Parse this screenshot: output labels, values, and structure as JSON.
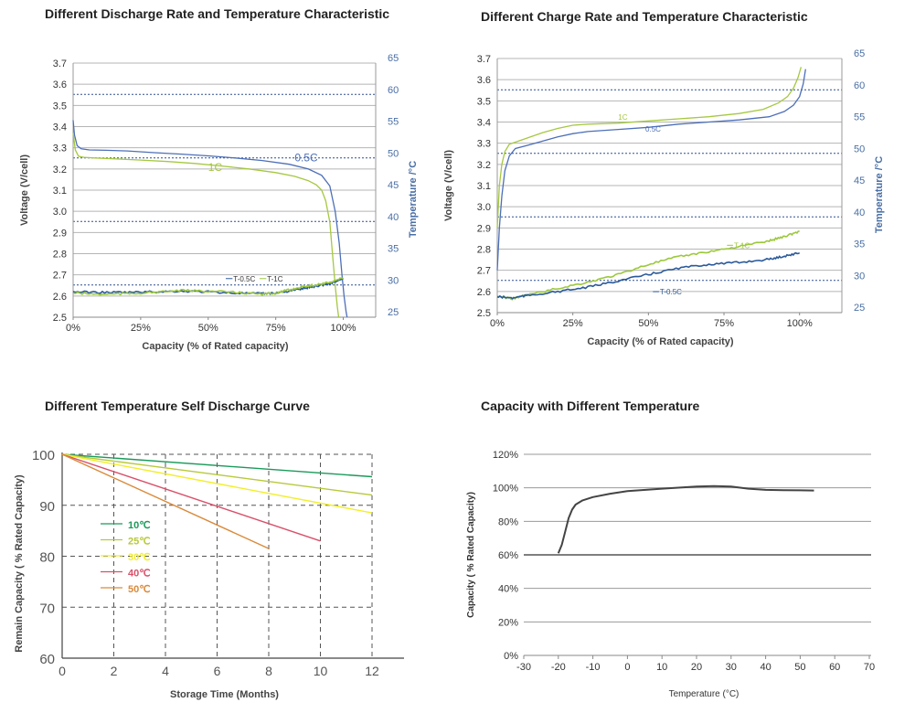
{
  "colors": {
    "axis_blue": "#4a6fa5",
    "grid": "#b5b5b5",
    "dotted": "#2f4f8f",
    "green": "#a5c840",
    "blue": "#4d6fb8",
    "t_green": "#9cc83c",
    "t_blue": "#2a5a9a",
    "c10": "#1a9a5a",
    "c25": "#b7c93a",
    "c30": "#f2ee2a",
    "c40": "#d9506a",
    "c50": "#d98a3a",
    "black_curve": "#444444",
    "bottom_axis": "#888888"
  },
  "chart_data": [
    {
      "type": "line",
      "title": "Different Discharge Rate and Temperature Characteristic",
      "xlabel": "Capacity  (% of Rated capacity)",
      "ylabel": "Voltage  (V/cell)",
      "y2label": "Temperature  /°C",
      "xlim": [
        0,
        112
      ],
      "ylim": [
        2.5,
        3.7
      ],
      "y2lim": [
        25,
        65
      ],
      "x_ticks": [
        "0%",
        "25%",
        "50%",
        "75%",
        "100%"
      ],
      "x_tick_values": [
        0,
        25,
        50,
        75,
        100
      ],
      "y_ticks": [
        "3.7",
        "3.6",
        "3.5",
        "3.4",
        "3.3",
        "3.2",
        "3.1",
        "3.0",
        "2.9",
        "2.8",
        "2.7",
        "2.6",
        "2.5"
      ],
      "y2_ticks": [
        "65",
        "60",
        "55",
        "50",
        "45",
        "40",
        "35",
        "30",
        "25"
      ],
      "series": [
        {
          "name": "0.5C",
          "axis": "left",
          "color_key": "blue",
          "x": [
            0,
            0.5,
            1.5,
            3,
            6,
            12,
            20,
            30,
            40,
            50,
            60,
            70,
            80,
            87,
            92,
            95,
            97,
            98.5,
            99.5,
            100.3,
            101,
            101.4
          ],
          "y": [
            3.43,
            3.36,
            3.31,
            3.295,
            3.29,
            3.288,
            3.285,
            3.277,
            3.27,
            3.262,
            3.252,
            3.24,
            3.222,
            3.2,
            3.17,
            3.12,
            3.0,
            2.85,
            2.7,
            2.6,
            2.53,
            2.5
          ]
        },
        {
          "name": "1C",
          "axis": "left",
          "color_key": "green",
          "x": [
            0,
            0.8,
            2,
            4,
            8,
            15,
            25,
            35,
            45,
            55,
            65,
            75,
            82,
            87,
            90,
            92,
            93.5,
            95,
            96,
            97,
            97.8,
            98.3
          ],
          "y": [
            3.37,
            3.29,
            3.26,
            3.255,
            3.252,
            3.248,
            3.242,
            3.235,
            3.226,
            3.214,
            3.2,
            3.183,
            3.165,
            3.145,
            3.125,
            3.1,
            3.05,
            2.95,
            2.8,
            2.65,
            2.55,
            2.5
          ]
        },
        {
          "name": "T-0.5C",
          "axis": "right",
          "color_key": "t_blue",
          "x": [
            0,
            10,
            20,
            30,
            40,
            50,
            60,
            70,
            75,
            80,
            85,
            90,
            95,
            100
          ],
          "y": [
            29.0,
            28.9,
            28.9,
            29.0,
            29.1,
            29.0,
            28.8,
            28.7,
            28.8,
            29.1,
            29.5,
            29.9,
            30.3,
            31.0
          ]
        },
        {
          "name": "T-1C",
          "axis": "right",
          "color_key": "t_green",
          "x": [
            0,
            10,
            20,
            30,
            40,
            50,
            60,
            70,
            75,
            80,
            85,
            90,
            95,
            100
          ],
          "y": [
            28.8,
            28.6,
            28.7,
            28.9,
            29.2,
            29.1,
            28.9,
            28.6,
            28.8,
            29.3,
            29.8,
            30.1,
            30.5,
            31.2
          ]
        }
      ],
      "annotations": {
        "label_05c": "0.5C",
        "label_1c": "1C",
        "legend_t05c": "T-0.5C",
        "legend_t1c": "T-1C"
      }
    },
    {
      "type": "line",
      "title": "Different  Charge Rate and Temperature Characteristic",
      "xlabel": "Capacity  (% of Rated capacity)",
      "ylabel": "Voltage  (V/cell)",
      "y2label": "Temperature  /°C",
      "xlim": [
        0,
        114
      ],
      "ylim": [
        2.5,
        3.7
      ],
      "y2lim": [
        25,
        65
      ],
      "x_ticks": [
        "0%",
        "25%",
        "50%",
        "75%",
        "100%"
      ],
      "x_tick_values": [
        0,
        25,
        50,
        75,
        100
      ],
      "y_ticks": [
        "3.7",
        "3.6",
        "3.5",
        "3.4",
        "3.3",
        "3.2",
        "3.1",
        "3.0",
        "2.9",
        "2.8",
        "2.7",
        "2.6",
        "2.5"
      ],
      "y2_ticks": [
        "65",
        "60",
        "55",
        "50",
        "45",
        "40",
        "35",
        "30",
        "25"
      ],
      "series": [
        {
          "name": "1C",
          "axis": "left",
          "color_key": "green",
          "x": [
            0,
            0.7,
            1.5,
            2.5,
            4,
            6,
            10,
            15,
            20,
            25,
            30,
            40,
            50,
            60,
            70,
            80,
            88,
            93,
            96,
            98,
            99.5,
            100.5
          ],
          "y": [
            2.9,
            3.1,
            3.2,
            3.26,
            3.295,
            3.305,
            3.325,
            3.35,
            3.37,
            3.385,
            3.39,
            3.395,
            3.405,
            3.415,
            3.425,
            3.44,
            3.46,
            3.49,
            3.52,
            3.56,
            3.61,
            3.66
          ]
        },
        {
          "name": "0.5C",
          "axis": "left",
          "color_key": "blue",
          "x": [
            0,
            0.7,
            1.5,
            2.5,
            4,
            6,
            10,
            15,
            20,
            25,
            30,
            40,
            50,
            60,
            70,
            80,
            90,
            95,
            98,
            100,
            101.2,
            102
          ],
          "y": [
            2.7,
            2.9,
            3.05,
            3.17,
            3.24,
            3.275,
            3.29,
            3.31,
            3.33,
            3.345,
            3.355,
            3.365,
            3.375,
            3.39,
            3.4,
            3.41,
            3.425,
            3.45,
            3.48,
            3.52,
            3.58,
            3.65
          ]
        },
        {
          "name": "T-1C",
          "axis": "right",
          "color_key": "t_green",
          "x": [
            0,
            5,
            10,
            20,
            30,
            40,
            50,
            60,
            70,
            80,
            90,
            95,
            100
          ],
          "y": [
            27.6,
            27.2,
            27.8,
            28.8,
            29.8,
            31.0,
            32.6,
            33.8,
            34.6,
            35.4,
            36.3,
            37.0,
            37.8
          ]
        },
        {
          "name": "T-0.5C",
          "axis": "right",
          "color_key": "t_blue",
          "x": [
            0,
            5,
            10,
            20,
            30,
            40,
            50,
            60,
            70,
            80,
            90,
            95,
            100
          ],
          "y": [
            27.5,
            27.3,
            27.7,
            28.3,
            29.0,
            30.0,
            31.0,
            32.0,
            32.6,
            32.9,
            33.4,
            33.9,
            34.4
          ]
        }
      ],
      "annotations": {
        "label_1c": "1C",
        "label_05c": "0.5C",
        "legend_t1c": "T-1C",
        "legend_t05c": "T-0.5C"
      }
    },
    {
      "type": "line",
      "title": "Different Temperature Self Discharge Curve",
      "xlabel": "Storage Time (Months)",
      "ylabel": "Remain Capacity ( % Rated Capacity)",
      "xlim": [
        0,
        12
      ],
      "ylim": [
        60,
        100
      ],
      "x_ticks": [
        "0",
        "2",
        "4",
        "6",
        "8",
        "10",
        "12"
      ],
      "y_ticks": [
        "100",
        "90",
        "80",
        "70",
        "60"
      ],
      "grid": "dashed",
      "series": [
        {
          "name": "10℃",
          "color_key": "c10",
          "x": [
            0,
            12
          ],
          "y": [
            100,
            95.6
          ]
        },
        {
          "name": "25℃",
          "color_key": "c25",
          "x": [
            0,
            12
          ],
          "y": [
            100,
            92.0
          ]
        },
        {
          "name": "30℃",
          "color_key": "c30",
          "x": [
            0,
            12
          ],
          "y": [
            100,
            88.5
          ]
        },
        {
          "name": "40℃",
          "color_key": "c40",
          "x": [
            0,
            10
          ],
          "y": [
            100,
            83.0
          ]
        },
        {
          "name": "50℃",
          "color_key": "c50",
          "x": [
            0,
            8
          ],
          "y": [
            100,
            81.5
          ]
        }
      ],
      "legend": [
        "10℃",
        "25℃",
        "30℃",
        "40℃",
        "50℃"
      ]
    },
    {
      "type": "line",
      "title": "Capacity with Different Temperature",
      "xlabel": "Temperature (°C)",
      "ylabel": "Capacity ( % Rated Capacity)",
      "xlim": [
        -30,
        70
      ],
      "ylim": [
        0,
        120
      ],
      "x_ticks": [
        "-30",
        "-20",
        "-10",
        "0",
        "10",
        "20",
        "30",
        "40",
        "50",
        "60",
        "70"
      ],
      "x_tick_values": [
        -30,
        -20,
        -10,
        0,
        10,
        20,
        30,
        40,
        50,
        60,
        70
      ],
      "y_ticks": [
        "120%",
        "100%",
        "80%",
        "60%",
        "40%",
        "20%",
        "0%"
      ],
      "y_tick_values": [
        120,
        100,
        80,
        60,
        40,
        20,
        0
      ],
      "series": [
        {
          "name": "capacity",
          "color_key": "black_curve",
          "x": [
            -20,
            -19,
            -18,
            -17,
            -16,
            -15,
            -13,
            -10,
            -5,
            0,
            10,
            20,
            25,
            30,
            35,
            40,
            45,
            50,
            54
          ],
          "y": [
            61,
            66,
            74,
            82,
            87,
            90,
            92.5,
            94.5,
            96.5,
            98,
            99.5,
            100.8,
            101,
            100.8,
            99.5,
            98.8,
            98.6,
            98.5,
            98.4
          ]
        }
      ]
    }
  ]
}
